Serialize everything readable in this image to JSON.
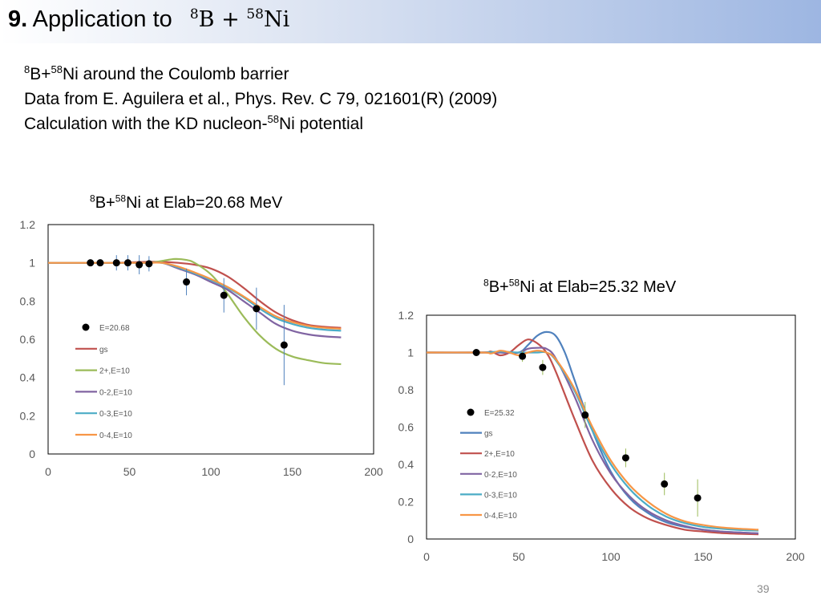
{
  "slide": {
    "number": "9.",
    "title_text": "Application to",
    "formula": {
      "a_mass": "8",
      "a_sym": "B",
      "op": " + ",
      "b_mass": "58",
      "b_sym": "Ni"
    },
    "page": "39"
  },
  "info": {
    "line1": {
      "m1": "8",
      "t1": "B+",
      "m2": "58",
      "t2": "Ni around the Coulomb barrier"
    },
    "line2": "Data from E. Aguilera et al., Phys. Rev. C 79, 021601(R) (2009)",
    "line3": {
      "t1": "Calculation with the KD nucleon-",
      "m": "58",
      "t2": "Ni potential"
    }
  },
  "colors": {
    "gs": "#c0504d",
    "2+": "#9bbb59",
    "0-2": "#8064a2",
    "0-3": "#4bacc6",
    "0-4": "#f79646",
    "gs_25": "#4f81bd",
    "2+_25": "#c0504d",
    "err_20": "#4f81bd",
    "err_25": "#9bbb59"
  },
  "chart_data": [
    {
      "type": "scatter",
      "title": {
        "m1": "8",
        "t1": "B+",
        "m2": "58",
        "t2": "Ni at Elab=20.68 MeV"
      },
      "xlim": [
        0,
        200
      ],
      "ylim": [
        0,
        1.2
      ],
      "xticks": [
        "0",
        "50",
        "100",
        "150",
        "200"
      ],
      "yticks": [
        "0",
        "0.2",
        "0.4",
        "0.6",
        "0.8",
        "1",
        "1.2"
      ],
      "legend_position": "left",
      "data_series": {
        "name": "E=20.68",
        "points": [
          [
            26,
            1.0,
            0
          ],
          [
            32,
            1.0,
            0
          ],
          [
            42,
            1.0,
            0.04
          ],
          [
            49,
            1.0,
            0.04
          ],
          [
            56,
            0.99,
            0.05
          ],
          [
            62,
            0.995,
            0.04
          ],
          [
            85,
            0.9,
            0.07
          ],
          [
            108,
            0.83,
            0.09
          ],
          [
            128,
            0.76,
            0.11
          ],
          [
            145,
            0.57,
            0.21
          ]
        ]
      },
      "series": [
        {
          "name": "gs",
          "color": "#c0504d",
          "points": [
            [
              0,
              1
            ],
            [
              40,
              1
            ],
            [
              60,
              1.005
            ],
            [
              70,
              1.005
            ],
            [
              80,
              1.0
            ],
            [
              90,
              0.99
            ],
            [
              100,
              0.97
            ],
            [
              110,
              0.93
            ],
            [
              120,
              0.87
            ],
            [
              130,
              0.8
            ],
            [
              140,
              0.74
            ],
            [
              150,
              0.7
            ],
            [
              160,
              0.675
            ],
            [
              170,
              0.665
            ],
            [
              180,
              0.66
            ]
          ]
        },
        {
          "name": "2+,E=10",
          "color": "#9bbb59",
          "points": [
            [
              0,
              1
            ],
            [
              40,
              1
            ],
            [
              55,
              1.0
            ],
            [
              62,
              1.0
            ],
            [
              70,
              1.01
            ],
            [
              78,
              1.02
            ],
            [
              85,
              1.015
            ],
            [
              90,
              1.0
            ],
            [
              100,
              0.94
            ],
            [
              110,
              0.84
            ],
            [
              120,
              0.72
            ],
            [
              130,
              0.62
            ],
            [
              140,
              0.55
            ],
            [
              150,
              0.51
            ],
            [
              160,
              0.49
            ],
            [
              170,
              0.475
            ],
            [
              180,
              0.47
            ]
          ]
        },
        {
          "name": "0-2,E=10",
          "color": "#8064a2",
          "points": [
            [
              0,
              1
            ],
            [
              40,
              1
            ],
            [
              60,
              1.0
            ],
            [
              70,
              1.0
            ],
            [
              80,
              0.97
            ],
            [
              90,
              0.94
            ],
            [
              100,
              0.9
            ],
            [
              110,
              0.86
            ],
            [
              120,
              0.8
            ],
            [
              130,
              0.74
            ],
            [
              140,
              0.68
            ],
            [
              150,
              0.645
            ],
            [
              160,
              0.625
            ],
            [
              170,
              0.615
            ],
            [
              180,
              0.61
            ]
          ]
        },
        {
          "name": "0-3,E=10",
          "color": "#4bacc6",
          "points": [
            [
              0,
              1
            ],
            [
              40,
              1
            ],
            [
              60,
              1.0
            ],
            [
              70,
              1.0
            ],
            [
              80,
              0.975
            ],
            [
              90,
              0.945
            ],
            [
              100,
              0.91
            ],
            [
              110,
              0.87
            ],
            [
              120,
              0.82
            ],
            [
              130,
              0.76
            ],
            [
              140,
              0.71
            ],
            [
              150,
              0.68
            ],
            [
              160,
              0.66
            ],
            [
              170,
              0.65
            ],
            [
              180,
              0.645
            ]
          ]
        },
        {
          "name": "0-4,E=10",
          "color": "#f79646",
          "points": [
            [
              0,
              1
            ],
            [
              40,
              1
            ],
            [
              60,
              1.0
            ],
            [
              70,
              1.0
            ],
            [
              80,
              0.98
            ],
            [
              90,
              0.95
            ],
            [
              100,
              0.915
            ],
            [
              110,
              0.875
            ],
            [
              120,
              0.825
            ],
            [
              130,
              0.77
            ],
            [
              140,
              0.72
            ],
            [
              150,
              0.69
            ],
            [
              160,
              0.67
            ],
            [
              170,
              0.66
            ],
            [
              180,
              0.655
            ]
          ]
        }
      ]
    },
    {
      "type": "scatter",
      "title": {
        "m1": "8",
        "t1": "B+",
        "m2": "58",
        "t2": "Ni at Elab=25.32 MeV"
      },
      "xlim": [
        0,
        200
      ],
      "ylim": [
        0,
        1.2
      ],
      "xticks": [
        "0",
        "50",
        "100",
        "150",
        "200"
      ],
      "yticks": [
        "0",
        "0.2",
        "0.4",
        "0.6",
        "0.8",
        "1",
        "1.2"
      ],
      "legend_position": "left",
      "data_series": {
        "name": "E=25.32",
        "points": [
          [
            27,
            1.0,
            0
          ],
          [
            52,
            0.98,
            0.03
          ],
          [
            63,
            0.92,
            0.04
          ],
          [
            86,
            0.665,
            0.07
          ],
          [
            108,
            0.435,
            0.05
          ],
          [
            129,
            0.295,
            0.06
          ],
          [
            147,
            0.22,
            0.1
          ]
        ]
      },
      "series": [
        {
          "name": "gs",
          "color": "#4f81bd",
          "points": [
            [
              0,
              1
            ],
            [
              30,
              1.0
            ],
            [
              40,
              1.0
            ],
            [
              50,
              1.0
            ],
            [
              55,
              1.04
            ],
            [
              60,
              1.09
            ],
            [
              65,
              1.11
            ],
            [
              70,
              1.09
            ],
            [
              75,
              1.0
            ],
            [
              80,
              0.86
            ],
            [
              90,
              0.58
            ],
            [
              100,
              0.36
            ],
            [
              110,
              0.22
            ],
            [
              120,
              0.14
            ],
            [
              130,
              0.09
            ],
            [
              140,
              0.065
            ],
            [
              150,
              0.05
            ],
            [
              160,
              0.04
            ],
            [
              170,
              0.035
            ],
            [
              180,
              0.03
            ]
          ]
        },
        {
          "name": "2+,E=10",
          "color": "#c0504d",
          "points": [
            [
              0,
              1
            ],
            [
              30,
              1.0
            ],
            [
              35,
              1.005
            ],
            [
              40,
              0.985
            ],
            [
              45,
              1.0
            ],
            [
              50,
              1.04
            ],
            [
              55,
              1.07
            ],
            [
              60,
              1.05
            ],
            [
              65,
              1.0
            ],
            [
              70,
              0.9
            ],
            [
              80,
              0.65
            ],
            [
              90,
              0.42
            ],
            [
              100,
              0.27
            ],
            [
              110,
              0.17
            ],
            [
              120,
              0.11
            ],
            [
              130,
              0.075
            ],
            [
              140,
              0.05
            ],
            [
              150,
              0.04
            ],
            [
              160,
              0.032
            ],
            [
              170,
              0.028
            ],
            [
              180,
              0.025
            ]
          ]
        },
        {
          "name": "0-2,E=10",
          "color": "#8064a2",
          "points": [
            [
              0,
              1
            ],
            [
              30,
              1.0
            ],
            [
              40,
              1.0
            ],
            [
              50,
              1.0
            ],
            [
              55,
              1.02
            ],
            [
              60,
              1.025
            ],
            [
              65,
              1.02
            ],
            [
              70,
              0.97
            ],
            [
              80,
              0.77
            ],
            [
              90,
              0.53
            ],
            [
              100,
              0.35
            ],
            [
              110,
              0.23
            ],
            [
              120,
              0.15
            ],
            [
              130,
              0.1
            ],
            [
              140,
              0.07
            ],
            [
              150,
              0.05
            ],
            [
              160,
              0.04
            ],
            [
              170,
              0.035
            ],
            [
              180,
              0.03
            ]
          ]
        },
        {
          "name": "0-3,E=10",
          "color": "#4bacc6",
          "points": [
            [
              0,
              1
            ],
            [
              30,
              1.0
            ],
            [
              40,
              1.005
            ],
            [
              50,
              1.0
            ],
            [
              60,
              1.0
            ],
            [
              65,
              1.0
            ],
            [
              70,
              0.96
            ],
            [
              80,
              0.8
            ],
            [
              90,
              0.58
            ],
            [
              100,
              0.4
            ],
            [
              110,
              0.27
            ],
            [
              120,
              0.18
            ],
            [
              130,
              0.12
            ],
            [
              140,
              0.085
            ],
            [
              150,
              0.065
            ],
            [
              160,
              0.055
            ],
            [
              170,
              0.048
            ],
            [
              180,
              0.045
            ]
          ]
        },
        {
          "name": "0-4,E=10",
          "color": "#f79646",
          "points": [
            [
              0,
              1
            ],
            [
              30,
              1.0
            ],
            [
              35,
              0.995
            ],
            [
              40,
              1.01
            ],
            [
              45,
              1.0
            ],
            [
              50,
              0.985
            ],
            [
              55,
              1.0
            ],
            [
              60,
              1.01
            ],
            [
              65,
              1.0
            ],
            [
              70,
              0.965
            ],
            [
              80,
              0.81
            ],
            [
              90,
              0.6
            ],
            [
              100,
              0.42
            ],
            [
              110,
              0.29
            ],
            [
              120,
              0.2
            ],
            [
              130,
              0.135
            ],
            [
              140,
              0.095
            ],
            [
              150,
              0.075
            ],
            [
              160,
              0.062
            ],
            [
              170,
              0.055
            ],
            [
              180,
              0.05
            ]
          ]
        }
      ]
    }
  ]
}
